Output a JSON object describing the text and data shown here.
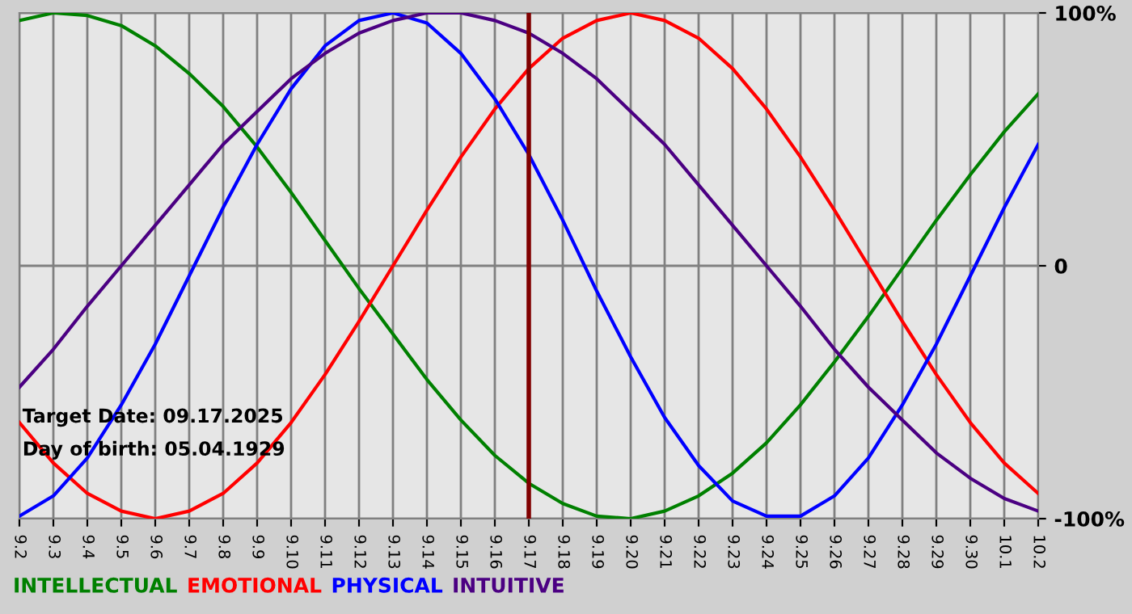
{
  "chart_data": {
    "type": "line",
    "categories": [
      "9.2",
      "9.3",
      "9.4",
      "9.5",
      "9.6",
      "9.7",
      "9.8",
      "9.9",
      "9.10",
      "9.11",
      "9.12",
      "9.13",
      "9.14",
      "9.15",
      "9.16",
      "9.17",
      "9.18",
      "9.19",
      "9.20",
      "9.21",
      "9.22",
      "9.23",
      "9.24",
      "9.25",
      "9.26",
      "9.27",
      "9.28",
      "9.29",
      "9.30",
      "10.1",
      "10.2"
    ],
    "series": [
      {
        "name": "INTELLECTUAL",
        "color": "#008000",
        "values": [
          97,
          100,
          99,
          95,
          87,
          76,
          63,
          47,
          29,
          10,
          -9,
          -27,
          -45,
          -61,
          -75,
          -86,
          -94,
          -99,
          -100,
          -97,
          -91,
          -82,
          -70,
          -55,
          -38,
          -20,
          -1,
          18,
          36,
          53,
          68
        ]
      },
      {
        "name": "EMOTIONAL",
        "color": "#ff0000",
        "values": [
          -62,
          -78,
          -90,
          -97,
          -100,
          -97,
          -90,
          -78,
          -62,
          -43,
          -22,
          0,
          22,
          43,
          62,
          78,
          90,
          97,
          100,
          97,
          90,
          78,
          62,
          43,
          22,
          0,
          -22,
          -43,
          -62,
          -78,
          -90
        ]
      },
      {
        "name": "PHYSICAL",
        "color": "#0000ff",
        "values": [
          -99,
          -91,
          -76,
          -55,
          -31,
          -4,
          23,
          48,
          70,
          87,
          97,
          100,
          96,
          84,
          66,
          44,
          18,
          -10,
          -36,
          -60,
          -79,
          -93,
          -99,
          -99,
          -91,
          -76,
          -55,
          -31,
          -4,
          23,
          48
        ]
      },
      {
        "name": "INTUITIVE",
        "color": "#4b0082",
        "values": [
          -48,
          -33,
          -16,
          0,
          16,
          32,
          48,
          61,
          74,
          84,
          92,
          97,
          100,
          100,
          97,
          92,
          84,
          74,
          61,
          48,
          32,
          16,
          0,
          -16,
          -33,
          -48,
          -61,
          -74,
          -84,
          -92,
          -97
        ]
      }
    ],
    "ylim": [
      -100,
      100
    ],
    "yticks": [
      {
        "value": -100,
        "label": "-100%"
      },
      0,
      {
        "value": 100,
        "label": "100%"
      }
    ],
    "grid": true,
    "legend": "bottom",
    "marker": "none",
    "line_style": "solid",
    "ref_lines": [
      {
        "axis": "x",
        "value": "9.17",
        "color": "#800000"
      }
    ],
    "annotations": [
      "Target Date: 09.17.2025",
      "Day of birth: 05.04.1929"
    ]
  }
}
